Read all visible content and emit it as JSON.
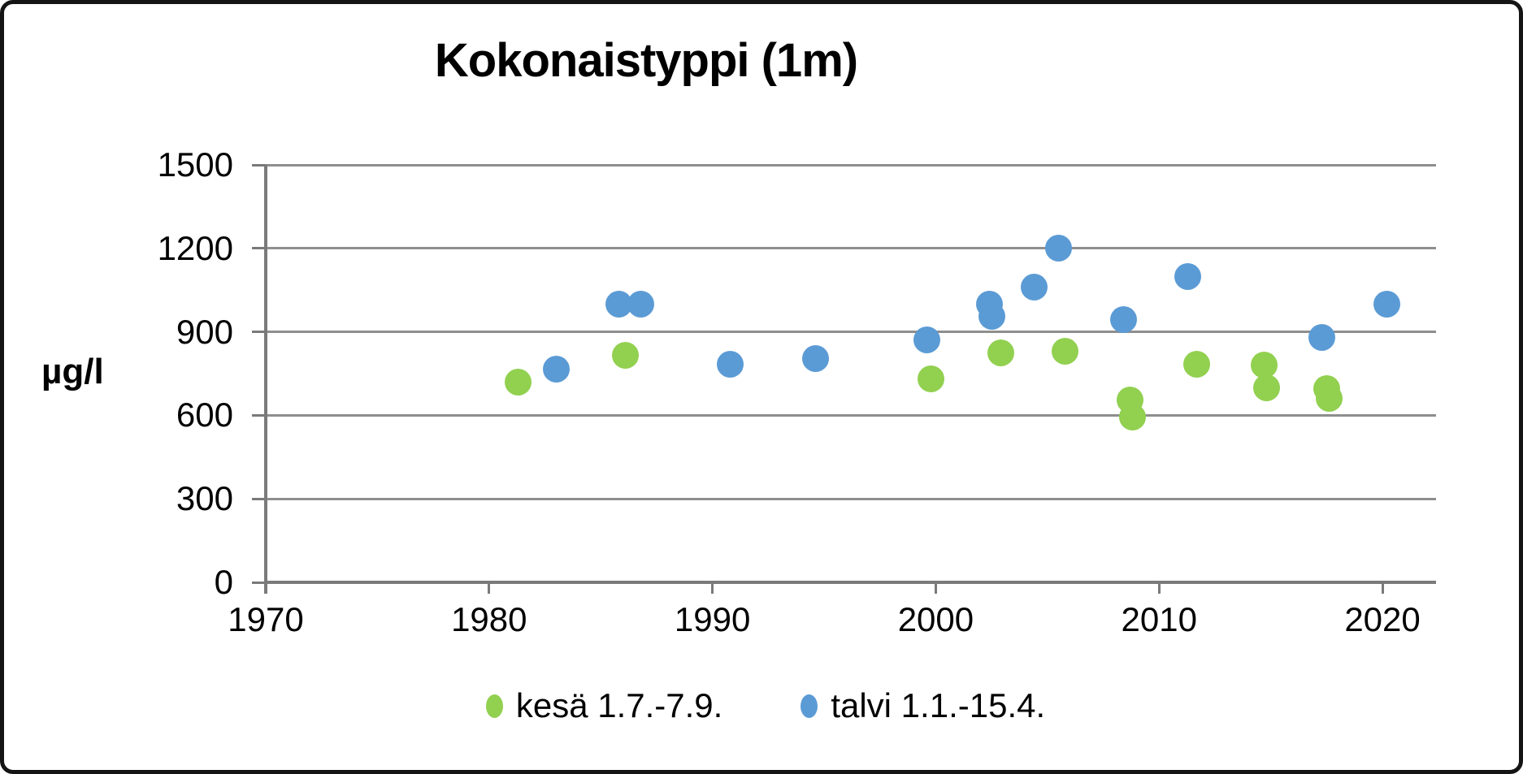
{
  "title": "Kokonaistyppi (1m)",
  "y_axis_unit": "µg/l",
  "chart_data": {
    "type": "scatter",
    "title": "Kokonaistyppi (1m)",
    "xlabel": "",
    "ylabel": "µg/l",
    "xlim": [
      1970,
      2022.4
    ],
    "ylim": [
      0,
      1500
    ],
    "x_ticks": [
      1970,
      1980,
      1990,
      2000,
      2010,
      2020
    ],
    "y_ticks": [
      0,
      300,
      600,
      900,
      1200,
      1500
    ],
    "grid": "horizontal",
    "legend_position": "bottom",
    "series": [
      {
        "name": "kesä 1.7.-7.9.",
        "color": "#92D050",
        "points": [
          [
            1981.3,
            720
          ],
          [
            1986.1,
            815
          ],
          [
            1999.8,
            730
          ],
          [
            2002.9,
            825
          ],
          [
            2005.8,
            830
          ],
          [
            2008.7,
            655
          ],
          [
            2008.8,
            595
          ],
          [
            2011.7,
            785
          ],
          [
            2014.7,
            780
          ],
          [
            2014.8,
            700
          ],
          [
            2017.5,
            695
          ],
          [
            2017.6,
            660
          ]
        ]
      },
      {
        "name": "talvi 1.1.-15.4.",
        "color": "#5B9BD5",
        "points": [
          [
            1983.0,
            765
          ],
          [
            1985.8,
            1000
          ],
          [
            1986.8,
            1000
          ],
          [
            1990.8,
            785
          ],
          [
            1994.6,
            805
          ],
          [
            1999.6,
            870
          ],
          [
            2002.4,
            1000
          ],
          [
            2002.5,
            955
          ],
          [
            2004.4,
            1060
          ],
          [
            2005.5,
            1200
          ],
          [
            2008.4,
            945
          ],
          [
            2011.3,
            1100
          ],
          [
            2017.3,
            880
          ],
          [
            2020.2,
            1000
          ]
        ]
      }
    ]
  }
}
